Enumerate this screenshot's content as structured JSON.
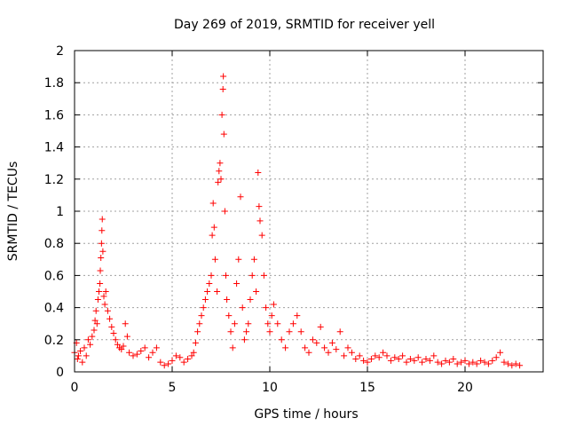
{
  "chart_data": {
    "type": "scatter",
    "title": "Day 269 of 2019, SRMTID for receiver yell",
    "xlabel": "GPS time / hours",
    "ylabel": "SRMTID / TECUs",
    "xlim": [
      0,
      24
    ],
    "ylim": [
      0,
      2
    ],
    "xticks": [
      0,
      5,
      10,
      15,
      20
    ],
    "xtick_labels": [
      "0",
      "5",
      "10",
      "15",
      "20"
    ],
    "yticks": [
      0,
      0.2,
      0.4,
      0.6,
      0.8,
      1,
      1.2,
      1.4,
      1.6,
      1.8,
      2
    ],
    "ytick_labels": [
      "0",
      "0.2",
      "0.4",
      "0.6",
      "0.8",
      "1",
      "1.2",
      "1.4",
      "1.6",
      "1.8",
      "2"
    ],
    "grid": true,
    "marker": "+",
    "color": "#ff0000",
    "points": [
      [
        0.0,
        0.12
      ],
      [
        0.1,
        0.18
      ],
      [
        0.15,
        0.08
      ],
      [
        0.2,
        0.1
      ],
      [
        0.3,
        0.13
      ],
      [
        0.4,
        0.06
      ],
      [
        0.5,
        0.15
      ],
      [
        0.6,
        0.1
      ],
      [
        0.7,
        0.2
      ],
      [
        0.8,
        0.17
      ],
      [
        0.9,
        0.22
      ],
      [
        1.0,
        0.26
      ],
      [
        1.05,
        0.32
      ],
      [
        1.1,
        0.38
      ],
      [
        1.15,
        0.3
      ],
      [
        1.2,
        0.45
      ],
      [
        1.25,
        0.5
      ],
      [
        1.3,
        0.55
      ],
      [
        1.32,
        0.63
      ],
      [
        1.35,
        0.71
      ],
      [
        1.38,
        0.8
      ],
      [
        1.4,
        0.88
      ],
      [
        1.42,
        0.95
      ],
      [
        1.45,
        0.75
      ],
      [
        1.5,
        0.47
      ],
      [
        1.55,
        0.42
      ],
      [
        1.6,
        0.5
      ],
      [
        1.7,
        0.38
      ],
      [
        1.8,
        0.33
      ],
      [
        1.9,
        0.28
      ],
      [
        2.0,
        0.24
      ],
      [
        2.1,
        0.2
      ],
      [
        2.2,
        0.17
      ],
      [
        2.3,
        0.15
      ],
      [
        2.4,
        0.14
      ],
      [
        2.5,
        0.16
      ],
      [
        2.6,
        0.3
      ],
      [
        2.7,
        0.22
      ],
      [
        2.8,
        0.12
      ],
      [
        3.0,
        0.1
      ],
      [
        3.2,
        0.11
      ],
      [
        3.4,
        0.13
      ],
      [
        3.6,
        0.15
      ],
      [
        3.8,
        0.09
      ],
      [
        4.0,
        0.12
      ],
      [
        4.2,
        0.15
      ],
      [
        4.4,
        0.06
      ],
      [
        4.6,
        0.04
      ],
      [
        4.8,
        0.05
      ],
      [
        5.0,
        0.07
      ],
      [
        5.2,
        0.1
      ],
      [
        5.4,
        0.09
      ],
      [
        5.6,
        0.06
      ],
      [
        5.8,
        0.08
      ],
      [
        6.0,
        0.1
      ],
      [
        6.1,
        0.12
      ],
      [
        6.2,
        0.18
      ],
      [
        6.3,
        0.25
      ],
      [
        6.4,
        0.3
      ],
      [
        6.5,
        0.35
      ],
      [
        6.6,
        0.4
      ],
      [
        6.7,
        0.45
      ],
      [
        6.8,
        0.5
      ],
      [
        6.9,
        0.55
      ],
      [
        7.0,
        0.6
      ],
      [
        7.05,
        0.85
      ],
      [
        7.1,
        1.05
      ],
      [
        7.15,
        0.9
      ],
      [
        7.2,
        0.7
      ],
      [
        7.3,
        0.5
      ],
      [
        7.35,
        1.18
      ],
      [
        7.4,
        1.25
      ],
      [
        7.45,
        1.3
      ],
      [
        7.5,
        1.2
      ],
      [
        7.55,
        1.6
      ],
      [
        7.6,
        1.76
      ],
      [
        7.62,
        1.84
      ],
      [
        7.65,
        1.48
      ],
      [
        7.7,
        1.0
      ],
      [
        7.75,
        0.6
      ],
      [
        7.8,
        0.45
      ],
      [
        7.9,
        0.35
      ],
      [
        8.0,
        0.25
      ],
      [
        8.1,
        0.15
      ],
      [
        8.2,
        0.3
      ],
      [
        8.3,
        0.55
      ],
      [
        8.4,
        0.7
      ],
      [
        8.5,
        1.09
      ],
      [
        8.6,
        0.4
      ],
      [
        8.7,
        0.2
      ],
      [
        8.8,
        0.25
      ],
      [
        8.9,
        0.3
      ],
      [
        9.0,
        0.45
      ],
      [
        9.1,
        0.6
      ],
      [
        9.2,
        0.7
      ],
      [
        9.3,
        0.5
      ],
      [
        9.4,
        1.24
      ],
      [
        9.45,
        1.03
      ],
      [
        9.5,
        0.94
      ],
      [
        9.6,
        0.85
      ],
      [
        9.7,
        0.6
      ],
      [
        9.8,
        0.4
      ],
      [
        9.9,
        0.3
      ],
      [
        10.0,
        0.25
      ],
      [
        10.1,
        0.35
      ],
      [
        10.2,
        0.42
      ],
      [
        10.4,
        0.3
      ],
      [
        10.6,
        0.2
      ],
      [
        10.8,
        0.15
      ],
      [
        11.0,
        0.25
      ],
      [
        11.2,
        0.3
      ],
      [
        11.4,
        0.35
      ],
      [
        11.6,
        0.25
      ],
      [
        11.8,
        0.15
      ],
      [
        12.0,
        0.12
      ],
      [
        12.2,
        0.2
      ],
      [
        12.4,
        0.18
      ],
      [
        12.6,
        0.28
      ],
      [
        12.8,
        0.15
      ],
      [
        13.0,
        0.12
      ],
      [
        13.2,
        0.18
      ],
      [
        13.4,
        0.14
      ],
      [
        13.6,
        0.25
      ],
      [
        13.8,
        0.1
      ],
      [
        14.0,
        0.15
      ],
      [
        14.2,
        0.12
      ],
      [
        14.4,
        0.08
      ],
      [
        14.6,
        0.1
      ],
      [
        14.8,
        0.07
      ],
      [
        15.0,
        0.06
      ],
      [
        15.2,
        0.08
      ],
      [
        15.4,
        0.1
      ],
      [
        15.6,
        0.09
      ],
      [
        15.8,
        0.12
      ],
      [
        16.0,
        0.1
      ],
      [
        16.2,
        0.07
      ],
      [
        16.4,
        0.09
      ],
      [
        16.6,
        0.08
      ],
      [
        16.8,
        0.1
      ],
      [
        17.0,
        0.06
      ],
      [
        17.2,
        0.08
      ],
      [
        17.4,
        0.07
      ],
      [
        17.6,
        0.09
      ],
      [
        17.8,
        0.06
      ],
      [
        18.0,
        0.08
      ],
      [
        18.2,
        0.07
      ],
      [
        18.4,
        0.1
      ],
      [
        18.6,
        0.06
      ],
      [
        18.8,
        0.05
      ],
      [
        19.0,
        0.07
      ],
      [
        19.2,
        0.06
      ],
      [
        19.4,
        0.08
      ],
      [
        19.6,
        0.05
      ],
      [
        19.8,
        0.06
      ],
      [
        20.0,
        0.07
      ],
      [
        20.2,
        0.05
      ],
      [
        20.4,
        0.06
      ],
      [
        20.6,
        0.05
      ],
      [
        20.8,
        0.07
      ],
      [
        21.0,
        0.06
      ],
      [
        21.2,
        0.05
      ],
      [
        21.4,
        0.07
      ],
      [
        21.6,
        0.09
      ],
      [
        21.8,
        0.12
      ],
      [
        22.0,
        0.06
      ],
      [
        22.2,
        0.05
      ],
      [
        22.4,
        0.04
      ],
      [
        22.6,
        0.05
      ],
      [
        22.8,
        0.04
      ]
    ]
  }
}
